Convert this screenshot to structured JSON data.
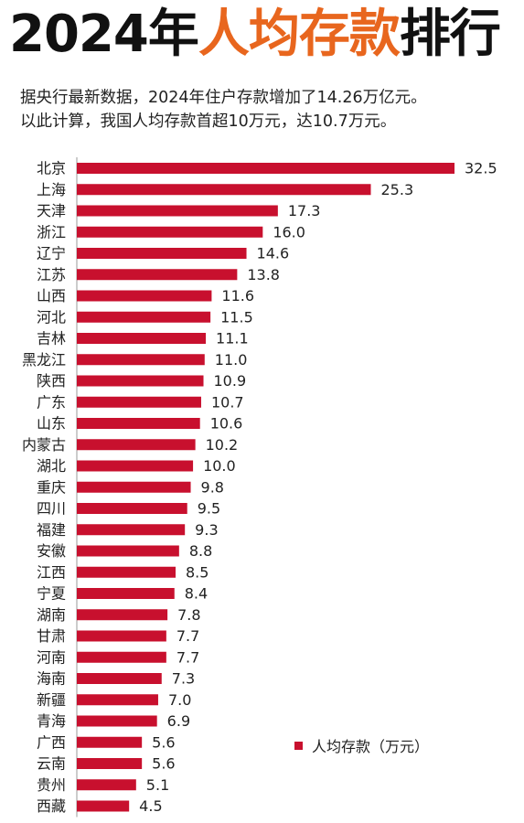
{
  "title": {
    "prefix": "2024年",
    "highlight": "人均存款",
    "suffix": "排行"
  },
  "subtitle": {
    "line1": "据央行最新数据，2024年住户存款增加了14.26万亿元。",
    "line2": "以此计算，我国人均存款首超10万元，达10.7万元。"
  },
  "colors": {
    "bar": "#c8102e",
    "highlight": "#e8661e"
  },
  "chart_data": {
    "type": "bar",
    "orientation": "horizontal",
    "categories": [
      "北京",
      "上海",
      "天津",
      "浙江",
      "辽宁",
      "江苏",
      "山西",
      "河北",
      "吉林",
      "黑龙江",
      "陕西",
      "广东",
      "山东",
      "内蒙古",
      "湖北",
      "重庆",
      "四川",
      "福建",
      "安徽",
      "江西",
      "宁夏",
      "湖南",
      "甘肃",
      "河南",
      "海南",
      "新疆",
      "青海",
      "广西",
      "云南",
      "贵州",
      "西藏"
    ],
    "series": [
      {
        "name": "人均存款（万元）",
        "values": [
          32.5,
          25.3,
          17.3,
          16.0,
          14.6,
          13.8,
          11.6,
          11.5,
          11.1,
          11.0,
          10.9,
          10.7,
          10.6,
          10.2,
          10.0,
          9.8,
          9.5,
          9.3,
          8.8,
          8.5,
          8.4,
          7.8,
          7.7,
          7.7,
          7.3,
          7.0,
          6.9,
          5.6,
          5.6,
          5.1,
          4.5
        ]
      }
    ],
    "value_labels": [
      "32.5",
      "25.3",
      "17.3",
      "16.0",
      "14.6",
      "13.8",
      "11.6",
      "11.5",
      "11.1",
      "11.0",
      "10.9",
      "10.7",
      "10.6",
      "10.2",
      "10.0",
      "9.8",
      "9.5",
      "9.3",
      "8.8",
      "8.5",
      "8.4",
      "7.8",
      "7.7",
      "7.7",
      "7.3",
      "7.0",
      "6.9",
      "5.6",
      "5.6",
      "5.1",
      "4.5"
    ],
    "xlim": [
      0,
      32.5
    ],
    "grid": false,
    "legend": "bottom-right"
  },
  "legend": {
    "label": "人均存款（万元）"
  }
}
